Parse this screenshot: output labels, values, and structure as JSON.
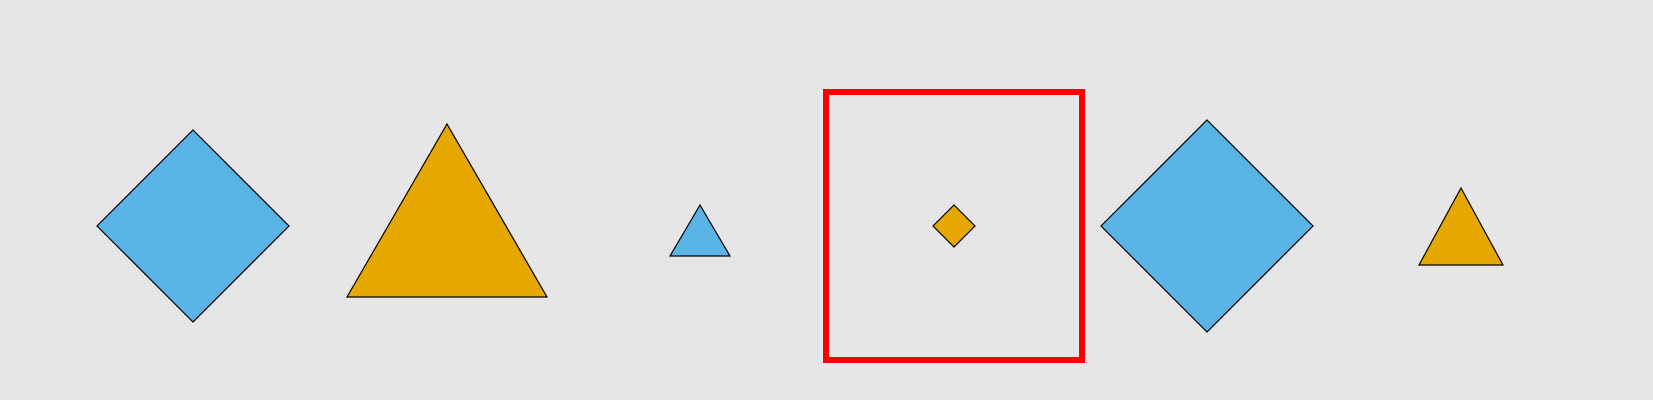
{
  "colors": {
    "background": "#e6e6e6",
    "blue": "#5ab4e6",
    "orange": "#e6a800",
    "outline": "#000000",
    "highlight": "#ff0000"
  },
  "shapes": [
    {
      "kind": "diamond",
      "color": "blue"
    },
    {
      "kind": "triangle",
      "color": "orange"
    },
    {
      "kind": "triangle",
      "color": "blue"
    },
    {
      "kind": "diamond",
      "color": "orange",
      "highlighted": true
    },
    {
      "kind": "diamond",
      "color": "blue"
    },
    {
      "kind": "triangle",
      "color": "orange"
    }
  ]
}
